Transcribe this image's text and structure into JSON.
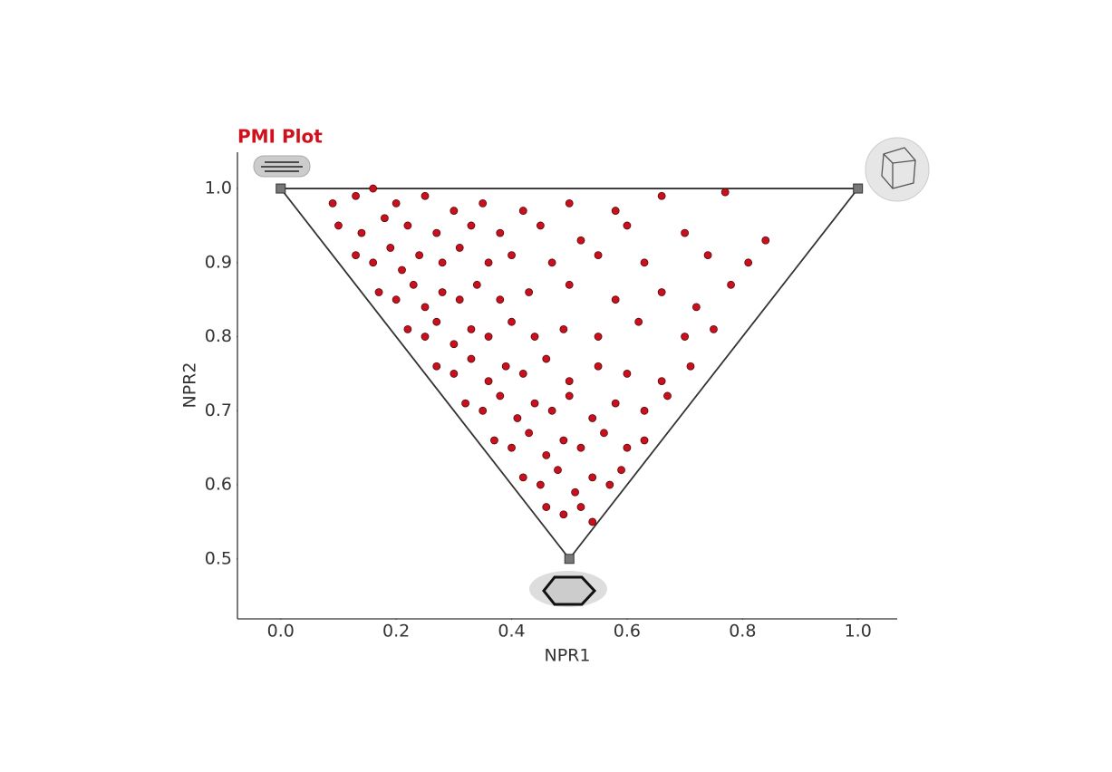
{
  "chart_data": {
    "type": "scatter",
    "title": "PMI Plot",
    "x_label": "NPR1",
    "y_label": "NPR2",
    "x": [
      0.09,
      0.13,
      0.16,
      0.2,
      0.25,
      0.3,
      0.35,
      0.42,
      0.5,
      0.58,
      0.66,
      0.77,
      0.1,
      0.14,
      0.18,
      0.22,
      0.27,
      0.33,
      0.38,
      0.45,
      0.52,
      0.6,
      0.7,
      0.84,
      0.81,
      0.13,
      0.16,
      0.19,
      0.21,
      0.24,
      0.28,
      0.31,
      0.36,
      0.4,
      0.47,
      0.55,
      0.63,
      0.74,
      0.78,
      0.17,
      0.2,
      0.23,
      0.25,
      0.28,
      0.31,
      0.34,
      0.38,
      0.43,
      0.5,
      0.58,
      0.66,
      0.72,
      0.22,
      0.25,
      0.27,
      0.3,
      0.33,
      0.36,
      0.4,
      0.44,
      0.49,
      0.55,
      0.62,
      0.7,
      0.75,
      0.27,
      0.3,
      0.33,
      0.36,
      0.39,
      0.42,
      0.46,
      0.5,
      0.55,
      0.6,
      0.66,
      0.71,
      0.32,
      0.35,
      0.38,
      0.41,
      0.44,
      0.47,
      0.5,
      0.54,
      0.58,
      0.63,
      0.67,
      0.37,
      0.4,
      0.43,
      0.46,
      0.49,
      0.52,
      0.56,
      0.6,
      0.63,
      0.42,
      0.45,
      0.48,
      0.51,
      0.54,
      0.57,
      0.59,
      0.46,
      0.49,
      0.52,
      0.54
    ],
    "values": [
      0.98,
      0.99,
      1.0,
      0.98,
      0.99,
      0.97,
      0.98,
      0.97,
      0.98,
      0.97,
      0.99,
      0.995,
      0.95,
      0.94,
      0.96,
      0.95,
      0.94,
      0.95,
      0.94,
      0.95,
      0.93,
      0.95,
      0.94,
      0.93,
      0.9,
      0.91,
      0.9,
      0.92,
      0.89,
      0.91,
      0.9,
      0.92,
      0.9,
      0.91,
      0.9,
      0.91,
      0.9,
      0.91,
      0.87,
      0.86,
      0.85,
      0.87,
      0.84,
      0.86,
      0.85,
      0.87,
      0.85,
      0.86,
      0.87,
      0.85,
      0.86,
      0.84,
      0.81,
      0.8,
      0.82,
      0.79,
      0.81,
      0.8,
      0.82,
      0.8,
      0.81,
      0.8,
      0.82,
      0.8,
      0.81,
      0.76,
      0.75,
      0.77,
      0.74,
      0.76,
      0.75,
      0.77,
      0.74,
      0.76,
      0.75,
      0.74,
      0.76,
      0.71,
      0.7,
      0.72,
      0.69,
      0.71,
      0.7,
      0.72,
      0.69,
      0.71,
      0.7,
      0.72,
      0.66,
      0.65,
      0.67,
      0.64,
      0.66,
      0.65,
      0.67,
      0.65,
      0.66,
      0.61,
      0.6,
      0.62,
      0.59,
      0.61,
      0.6,
      0.62,
      0.57,
      0.56,
      0.57,
      0.55
    ],
    "color": "#c8101e",
    "reference_triangle": {
      "x": [
        0,
        1,
        0.5
      ],
      "y": [
        1,
        1,
        0.5
      ]
    },
    "xlim": [
      -0.075,
      1.068
    ],
    "ylim": [
      0.419,
      1.049
    ],
    "xticks": [
      {
        "value": 0,
        "label": "0.0"
      },
      0.2,
      0.4,
      0.6,
      0.8,
      {
        "value": 1,
        "label": "1.0"
      }
    ],
    "yticks": [
      0.5,
      0.6,
      0.7,
      0.8,
      0.9,
      {
        "value": 1,
        "label": "1.0"
      }
    ]
  }
}
